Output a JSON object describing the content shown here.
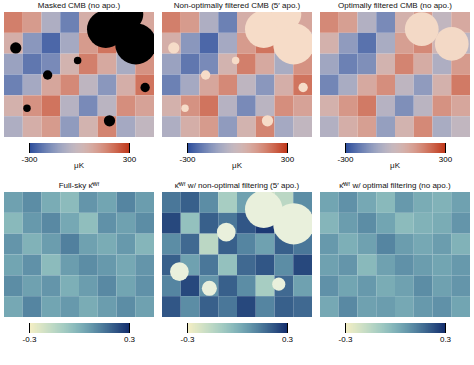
{
  "chart_data": [
    {
      "type": "heatmap",
      "title": "Masked CMB (no apo.)",
      "cells": [
        [
          180,
          120,
          -80,
          -200,
          60,
          150,
          -40,
          90
        ],
        [
          60,
          -150,
          -250,
          -100,
          120,
          200,
          30,
          -60
        ],
        [
          -120,
          -220,
          -180,
          40,
          180,
          80,
          -90,
          140
        ],
        [
          -200,
          -100,
          90,
          160,
          -40,
          -150,
          60,
          200
        ],
        [
          50,
          140,
          200,
          -60,
          -180,
          -50,
          150,
          100
        ],
        [
          -80,
          60,
          120,
          -140,
          40,
          170,
          -100,
          -30
        ]
      ],
      "masks": [
        {
          "x": 5.4,
          "y": 0.8,
          "r": 1.0
        },
        {
          "x": 7.0,
          "y": 1.5,
          "r": 1.1
        },
        {
          "x": 6.6,
          "y": 0.1,
          "r": 0.8
        },
        {
          "x": 0.6,
          "y": 1.7,
          "r": 0.3
        },
        {
          "x": 2.3,
          "y": 3.0,
          "r": 0.25
        },
        {
          "x": 5.6,
          "y": 5.2,
          "r": 0.3
        },
        {
          "x": 3.9,
          "y": 2.3,
          "r": 0.2
        },
        {
          "x": 7.5,
          "y": 3.6,
          "r": 0.25
        },
        {
          "x": 1.2,
          "y": 4.6,
          "r": 0.2
        }
      ],
      "mask_color": "#000000",
      "color": [
        "#2b4c9b",
        "#f4f1ea",
        "#c0391b"
      ],
      "colorbar_range": [
        -300,
        300
      ],
      "colorbar_ticks": [
        -300,
        300
      ],
      "colorbar_label": "μK"
    },
    {
      "type": "heatmap",
      "title": "Non-optimally filtered CMB (5′ apo.)",
      "cells": [
        [
          180,
          120,
          -80,
          -200,
          60,
          150,
          -40,
          90
        ],
        [
          60,
          -150,
          -250,
          -100,
          120,
          200,
          30,
          -60
        ],
        [
          -120,
          -220,
          -180,
          40,
          180,
          80,
          -90,
          140
        ],
        [
          -200,
          -100,
          90,
          160,
          -40,
          -150,
          60,
          200
        ],
        [
          50,
          140,
          200,
          -60,
          -180,
          -50,
          150,
          100
        ],
        [
          -80,
          60,
          120,
          -140,
          40,
          170,
          -100,
          -30
        ]
      ],
      "masks": [
        {
          "x": 5.4,
          "y": 0.8,
          "r": 1.0
        },
        {
          "x": 7.0,
          "y": 1.5,
          "r": 1.1
        },
        {
          "x": 6.6,
          "y": 0.1,
          "r": 0.8
        },
        {
          "x": 0.6,
          "y": 1.7,
          "r": 0.3
        },
        {
          "x": 2.3,
          "y": 3.0,
          "r": 0.25
        },
        {
          "x": 5.6,
          "y": 5.2,
          "r": 0.3
        },
        {
          "x": 3.9,
          "y": 2.3,
          "r": 0.2
        },
        {
          "x": 7.5,
          "y": 3.6,
          "r": 0.25
        },
        {
          "x": 1.2,
          "y": 4.6,
          "r": 0.2
        }
      ],
      "mask_color": "#f6dcc8",
      "color": [
        "#2b4c9b",
        "#f4f1ea",
        "#c0391b"
      ],
      "colorbar_range": [
        -300,
        300
      ],
      "colorbar_ticks": [
        -300,
        300
      ],
      "colorbar_label": "μK"
    },
    {
      "type": "heatmap",
      "title": "Optimally filtered CMB (no apo.)",
      "cells": [
        [
          160,
          110,
          -70,
          -180,
          50,
          120,
          -30,
          80
        ],
        [
          50,
          -140,
          -230,
          -90,
          110,
          160,
          20,
          -50
        ],
        [
          -110,
          -200,
          -170,
          40,
          170,
          70,
          -80,
          120
        ],
        [
          -190,
          -90,
          80,
          150,
          -40,
          -140,
          50,
          190
        ],
        [
          50,
          130,
          190,
          -60,
          -170,
          -50,
          140,
          90
        ],
        [
          -70,
          60,
          110,
          -130,
          40,
          160,
          -90,
          -30
        ]
      ],
      "masks": [
        {
          "x": 5.4,
          "y": 0.8,
          "r": 0.9
        },
        {
          "x": 7.0,
          "y": 1.5,
          "r": 0.9
        }
      ],
      "mask_color": "#f3d9c6",
      "color": [
        "#2b4c9b",
        "#f4f1ea",
        "#c0391b"
      ],
      "colorbar_range": [
        -300,
        300
      ],
      "colorbar_ticks": [
        -300,
        300
      ],
      "colorbar_label": "μK"
    },
    {
      "type": "heatmap",
      "title": "Full-sky κ̂ᵂᶠ",
      "cells": [
        [
          0.05,
          0.1,
          0.02,
          -0.03,
          0.08,
          0.04,
          0.12,
          0.06
        ],
        [
          -0.02,
          0.07,
          0.11,
          0.03,
          -0.04,
          0.09,
          0.05,
          0.1
        ],
        [
          0.08,
          0.0,
          0.06,
          0.13,
          0.05,
          0.02,
          0.07,
          -0.01
        ],
        [
          0.04,
          0.09,
          -0.03,
          0.06,
          0.1,
          0.07,
          0.03,
          0.08
        ],
        [
          0.1,
          0.05,
          0.08,
          0.01,
          0.06,
          0.11,
          0.04,
          0.09
        ],
        [
          0.03,
          0.12,
          0.04,
          0.07,
          0.02,
          0.06,
          0.1,
          0.05
        ]
      ],
      "masks": [],
      "color": [
        "#f6efc4",
        "#7fc4c8",
        "#152f6e"
      ],
      "colorbar_range": [
        -0.3,
        0.3
      ],
      "colorbar_ticks": [
        -0.3,
        0.3
      ]
    },
    {
      "type": "heatmap",
      "title": "κ̂ᵂᶠ w/ non-optimal filtering (5′ apo.)",
      "cells": [
        [
          0.15,
          0.2,
          0.1,
          -0.1,
          0.05,
          -0.2,
          -0.15,
          0.1
        ],
        [
          0.25,
          -0.05,
          0.2,
          0.15,
          0.22,
          0.28,
          -0.1,
          0.25
        ],
        [
          0.1,
          0.18,
          -0.15,
          0.2,
          0.12,
          0.05,
          0.2,
          0.15
        ],
        [
          0.2,
          0.05,
          0.15,
          -0.05,
          0.18,
          0.22,
          0.1,
          0.25
        ],
        [
          0.12,
          0.25,
          0.08,
          0.2,
          0.1,
          -0.1,
          0.18,
          0.05
        ],
        [
          0.22,
          0.1,
          0.2,
          0.15,
          0.25,
          0.12,
          0.2,
          0.18
        ]
      ],
      "masks": [
        {
          "x": 5.4,
          "y": 0.8,
          "r": 1.0
        },
        {
          "x": 7.0,
          "y": 1.5,
          "r": 1.1
        },
        {
          "x": 3.4,
          "y": 1.9,
          "r": 0.5
        },
        {
          "x": 0.9,
          "y": 3.8,
          "r": 0.5
        },
        {
          "x": 2.5,
          "y": 4.6,
          "r": 0.4
        },
        {
          "x": 6.2,
          "y": 4.4,
          "r": 0.35
        }
      ],
      "mask_color": "#e9f0dc",
      "color": [
        "#f6efc4",
        "#7fc4c8",
        "#152f6e"
      ],
      "colorbar_range": [
        -0.3,
        0.3
      ],
      "colorbar_ticks": [
        -0.3,
        0.3
      ]
    },
    {
      "type": "heatmap",
      "title": "κ̂ᵂᶠ w/ optimal filtering (no apo.)",
      "cells": [
        [
          0.04,
          0.09,
          0.03,
          -0.02,
          0.07,
          0.02,
          0.0,
          0.05
        ],
        [
          -0.01,
          0.06,
          0.1,
          0.04,
          -0.03,
          0.0,
          0.02,
          0.08
        ],
        [
          0.07,
          0.01,
          0.05,
          0.12,
          0.06,
          0.03,
          0.06,
          0.0
        ],
        [
          0.05,
          0.08,
          -0.02,
          0.05,
          0.09,
          0.06,
          0.04,
          0.07
        ],
        [
          0.09,
          0.04,
          0.07,
          0.02,
          0.05,
          0.1,
          0.05,
          0.08
        ],
        [
          0.03,
          0.11,
          0.05,
          0.06,
          0.03,
          0.07,
          0.09,
          0.04
        ]
      ],
      "masks": [],
      "color": [
        "#f6efc4",
        "#7fc4c8",
        "#152f6e"
      ],
      "colorbar_range": [
        -0.3,
        0.3
      ],
      "colorbar_ticks": [
        -0.3,
        0.3
      ]
    }
  ]
}
